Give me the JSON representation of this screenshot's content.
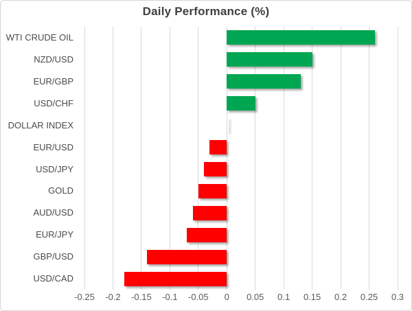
{
  "chart_data": {
    "type": "bar",
    "orientation": "horizontal",
    "title": "Daily Performance (%)",
    "categories": [
      "WTI CRUDE OIL",
      "NZD/USD",
      "EUR/GBP",
      "USD/CHF",
      "DOLLAR INDEX",
      "EUR/USD",
      "USD/JPY",
      "GOLD",
      "AUD/USD",
      "EUR/JPY",
      "GBP/USD",
      "USD/CAD"
    ],
    "values": [
      0.26,
      0.15,
      0.13,
      0.05,
      0.0,
      -0.03,
      -0.04,
      -0.05,
      -0.06,
      -0.07,
      -0.14,
      -0.18
    ],
    "xlim": [
      -0.25,
      0.3
    ],
    "xticks": [
      "-0.25",
      "-0.2",
      "-0.15",
      "-0.1",
      "-0.05",
      "0",
      "0.05",
      "0.1",
      "0.15",
      "0.2",
      "0.25",
      "0.3"
    ],
    "xlabel": "",
    "ylabel": "",
    "grid": "vertical-only",
    "legend": "none",
    "colors": {
      "positive": "#00A651",
      "negative": "#FF0000",
      "gridline": "#D9D9D9",
      "axis_line": "#D9D9D9",
      "title_text": "#3F3F3F",
      "label_text": "#4A4A4A",
      "tick_text": "#595959",
      "frame_border": "#D6D6D6",
      "background": "#FFFFFF"
    }
  }
}
